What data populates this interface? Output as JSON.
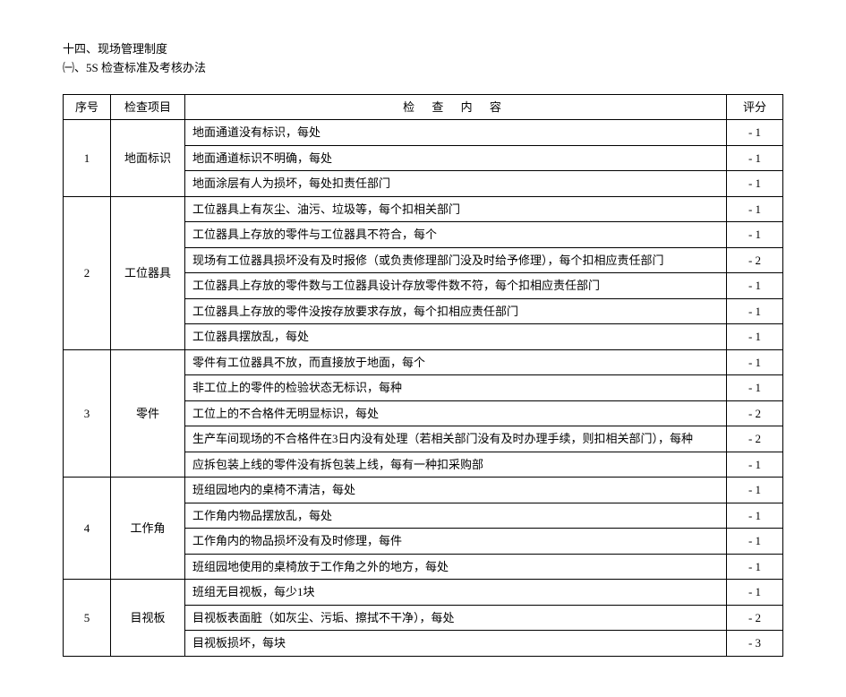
{
  "heading": {
    "line1": "十四、现场管理制度",
    "line2": "㈠、5S 检查标准及考核办法"
  },
  "headers": {
    "seq": "序号",
    "item": "检查项目",
    "content": "检 查 内 容",
    "score": "评分"
  },
  "sections": [
    {
      "seq": "1",
      "item": "地面标识",
      "rows": [
        {
          "content": "地面通道没有标识，每处",
          "score": "- 1"
        },
        {
          "content": "地面通道标识不明确，每处",
          "score": "- 1"
        },
        {
          "content": "地面涂层有人为损坏，每处扣责任部门",
          "score": "- 1"
        }
      ]
    },
    {
      "seq": "2",
      "item": "工位器具",
      "rows": [
        {
          "content": "工位器具上有灰尘、油污、垃圾等，每个扣相关部门",
          "score": "- 1"
        },
        {
          "content": "工位器具上存放的零件与工位器具不符合，每个",
          "score": "- 1"
        },
        {
          "content": "现场有工位器具损坏没有及时报修（或负责修理部门没及时给予修理），每个扣相应责任部门",
          "score": "- 2"
        },
        {
          "content": "工位器具上存放的零件数与工位器具设计存放零件数不符，每个扣相应责任部门",
          "score": "- 1"
        },
        {
          "content": "工位器具上存放的零件没按存放要求存放，每个扣相应责任部门",
          "score": "- 1"
        },
        {
          "content": "工位器具摆放乱，每处",
          "score": "- 1"
        }
      ]
    },
    {
      "seq": "3",
      "item": "零件",
      "rows": [
        {
          "content": "零件有工位器具不放，而直接放于地面，每个",
          "score": "- 1"
        },
        {
          "content": "非工位上的零件的检验状态无标识，每种",
          "score": "- 1"
        },
        {
          "content": "工位上的不合格件无明显标识，每处",
          "score": "- 2"
        },
        {
          "content": "生产车间现场的不合格件在3日内没有处理（若相关部门没有及时办理手续，则扣相关部门），每种",
          "score": "- 2"
        },
        {
          "content": "应拆包装上线的零件没有拆包装上线，每有一种扣采购部",
          "score": "- 1"
        }
      ]
    },
    {
      "seq": "4",
      "item": "工作角",
      "rows": [
        {
          "content": "班组园地内的桌椅不清洁，每处",
          "score": "- 1"
        },
        {
          "content": "工作角内物品摆放乱，每处",
          "score": "- 1"
        },
        {
          "content": "工作角内的物品损坏没有及时修理，每件",
          "score": "- 1"
        },
        {
          "content": "班组园地使用的桌椅放于工作角之外的地方，每处",
          "score": "- 1"
        }
      ]
    },
    {
      "seq": "5",
      "item": "目视板",
      "rows": [
        {
          "content": "班组无目视板，每少1块",
          "score": "- 1"
        },
        {
          "content": "目视板表面脏（如灰尘、污垢、擦拭不干净），每处",
          "score": "- 2"
        },
        {
          "content": "目视板损坏，每块",
          "score": "- 3"
        }
      ]
    }
  ]
}
